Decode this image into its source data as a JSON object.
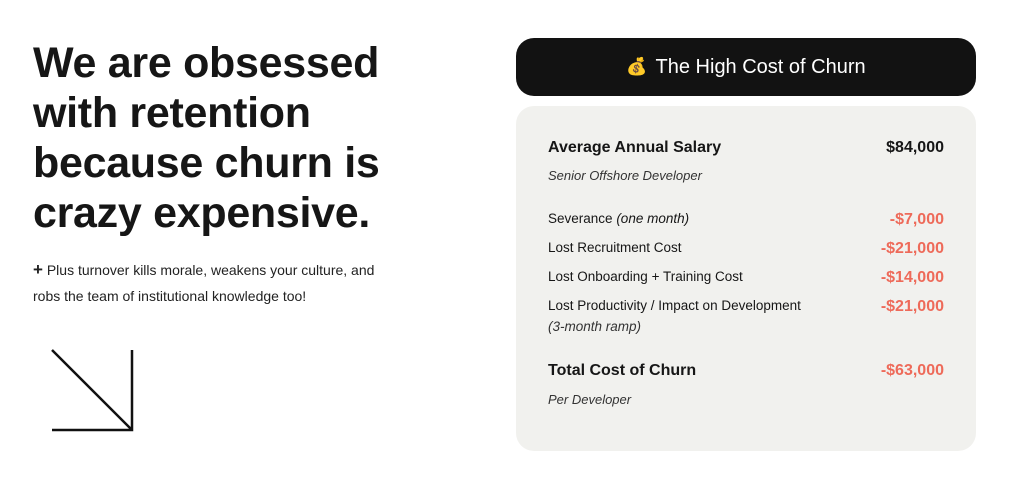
{
  "headline": "We are obsessed with retention because churn is crazy expensive.",
  "subtext": {
    "icon": "plus-icon",
    "glyph": "+",
    "text": "Plus turnover kills morale, weakens your culture, and robs the team of institutional knowledge too!"
  },
  "card": {
    "title_emoji": "💰",
    "title": "The High Cost of Churn",
    "salary": {
      "label": "Average Annual Salary",
      "value": "$84,000",
      "note": "Senior Offshore Developer"
    },
    "items": [
      {
        "label": "Severance",
        "qualifier": "(one month)",
        "value": "-$7,000"
      },
      {
        "label": "Lost Recruitment Cost",
        "value": "-$21,000"
      },
      {
        "label": "Lost Onboarding + Training Cost",
        "value": "-$14,000"
      },
      {
        "label": "Lost Productivity / Impact on Development",
        "note": "(3-month ramp)",
        "value": "-$21,000"
      }
    ],
    "total": {
      "label": "Total Cost of Churn",
      "value": "-$63,000",
      "note": "Per Developer"
    }
  },
  "colors": {
    "negative": "#ee6a59",
    "header_bg": "#121212",
    "card_bg": "#f1f1ee"
  }
}
